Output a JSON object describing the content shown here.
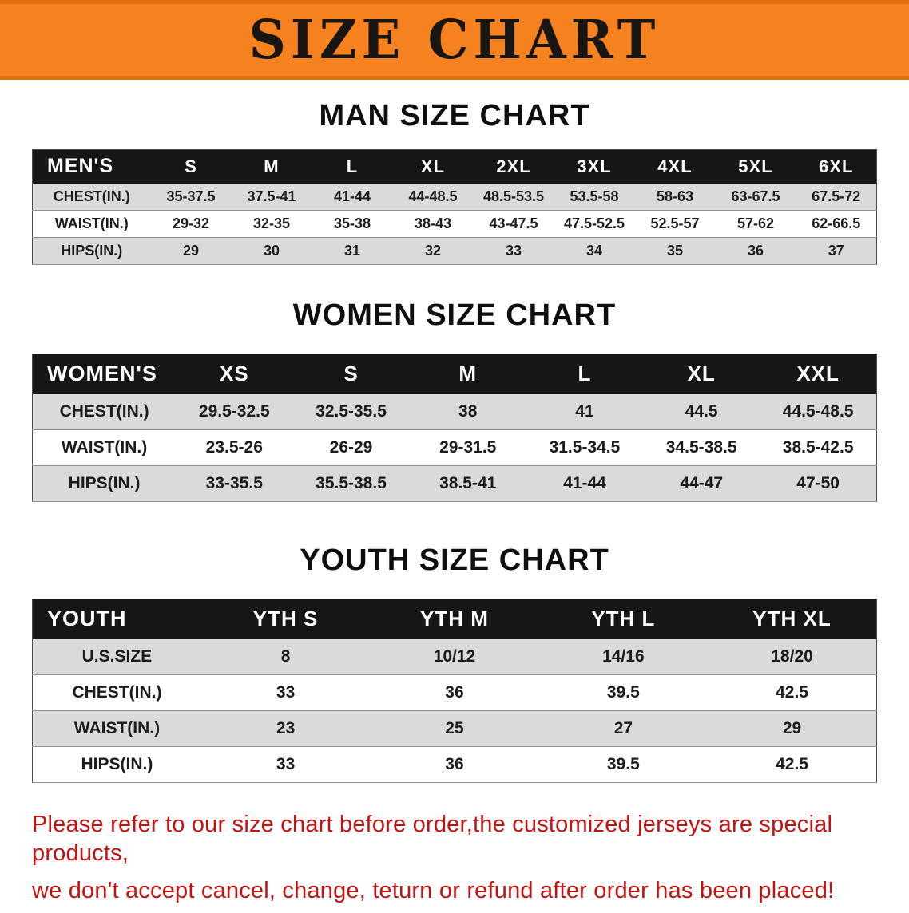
{
  "banner": {
    "title": "SIZE CHART"
  },
  "colors": {
    "banner_bg": "#F5821F",
    "banner_edge": "#DF700D",
    "table_header_bg": "#161616",
    "row_shade": "#DADADA",
    "note_red": "#C41212"
  },
  "men": {
    "heading": "MAN SIZE CHART",
    "corner_label": "MEN'S",
    "columns": [
      "S",
      "M",
      "L",
      "XL",
      "2XL",
      "3XL",
      "4XL",
      "5XL",
      "6XL"
    ],
    "rows": [
      {
        "label": "CHEST(IN.)",
        "values": [
          "35-37.5",
          "37.5-41",
          "41-44",
          "44-48.5",
          "48.5-53.5",
          "53.5-58",
          "58-63",
          "63-67.5",
          "67.5-72"
        ]
      },
      {
        "label": "WAIST(IN.)",
        "values": [
          "29-32",
          "32-35",
          "35-38",
          "38-43",
          "43-47.5",
          "47.5-52.5",
          "52.5-57",
          "57-62",
          "62-66.5"
        ]
      },
      {
        "label": "HIPS(IN.)",
        "values": [
          "29",
          "30",
          "31",
          "32",
          "33",
          "34",
          "35",
          "36",
          "37"
        ]
      }
    ]
  },
  "women": {
    "heading": "WOMEN SIZE CHART",
    "corner_label": "WOMEN'S",
    "columns": [
      "XS",
      "S",
      "M",
      "L",
      "XL",
      "XXL"
    ],
    "rows": [
      {
        "label": "CHEST(IN.)",
        "values": [
          "29.5-32.5",
          "32.5-35.5",
          "38",
          "41",
          "44.5",
          "44.5-48.5"
        ]
      },
      {
        "label": "WAIST(IN.)",
        "values": [
          "23.5-26",
          "26-29",
          "29-31.5",
          "31.5-34.5",
          "34.5-38.5",
          "38.5-42.5"
        ]
      },
      {
        "label": "HIPS(IN.)",
        "values": [
          "33-35.5",
          "35.5-38.5",
          "38.5-41",
          "41-44",
          "44-47",
          "47-50"
        ]
      }
    ]
  },
  "youth": {
    "heading": "YOUTH SIZE CHART",
    "corner_label": "YOUTH",
    "columns": [
      "YTH S",
      "YTH M",
      "YTH L",
      "YTH XL"
    ],
    "rows": [
      {
        "label": "U.S.SIZE",
        "values": [
          "8",
          "10/12",
          "14/16",
          "18/20"
        ]
      },
      {
        "label": "CHEST(IN.)",
        "values": [
          "33",
          "36",
          "39.5",
          "42.5"
        ]
      },
      {
        "label": "WAIST(IN.)",
        "values": [
          "23",
          "25",
          "27",
          "29"
        ]
      },
      {
        "label": "HIPS(IN.)",
        "values": [
          "33",
          "36",
          "39.5",
          "42.5"
        ]
      }
    ]
  },
  "note": {
    "line1": "Please refer to our size chart before order,the customized jerseys are special products,",
    "line2": "we don't accept cancel, change, teturn or refund after order has been placed!"
  }
}
